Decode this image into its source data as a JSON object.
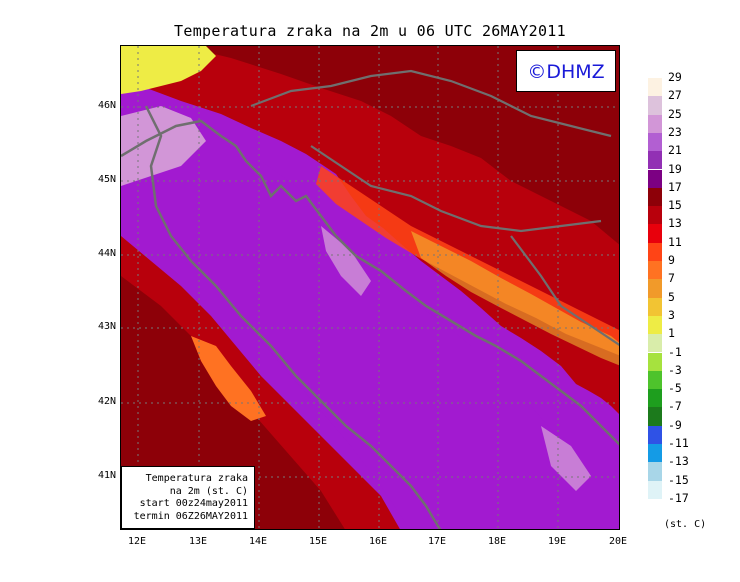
{
  "title": "Temperatura zraka na 2m u 06 UTC 26MAY2011",
  "logo": "©DHMZ",
  "info_box": {
    "line1": "Temperatura zraka",
    "line2": "na 2m (st. C)",
    "line3": "start 00z24may2011",
    "line4": "termin 06Z26MAY2011"
  },
  "lat_labels": [
    "46N",
    "45N",
    "44N",
    "43N",
    "42N",
    "41N"
  ],
  "lon_labels": [
    "12E",
    "13E",
    "14E",
    "15E",
    "16E",
    "17E",
    "18E",
    "19E",
    "20E"
  ],
  "legend": {
    "units": "(st. C)",
    "labels": [
      "29",
      "27",
      "25",
      "23",
      "21",
      "19",
      "17",
      "15",
      "13",
      "11",
      "9",
      "7",
      "5",
      "3",
      "1",
      "-1",
      "-3",
      "-5",
      "-7",
      "-9",
      "-11",
      "-13",
      "-15",
      "-17"
    ],
    "colors": [
      "#fdf2e2",
      "#ddc2dc",
      "#d296d7",
      "#b25fd2",
      "#9230b4",
      "#7c0083",
      "#8d0008",
      "#b8000c",
      "#e8000c",
      "#ff4416",
      "#ff7222",
      "#f19a2a",
      "#f2c433",
      "#eeec45",
      "#d9edaa",
      "#a6e23e",
      "#4ec32c",
      "#1e9e1e",
      "#1c7a1c",
      "#2f52e6",
      "#149be6",
      "#a8d6e8",
      "#dff3f7"
    ]
  }
}
